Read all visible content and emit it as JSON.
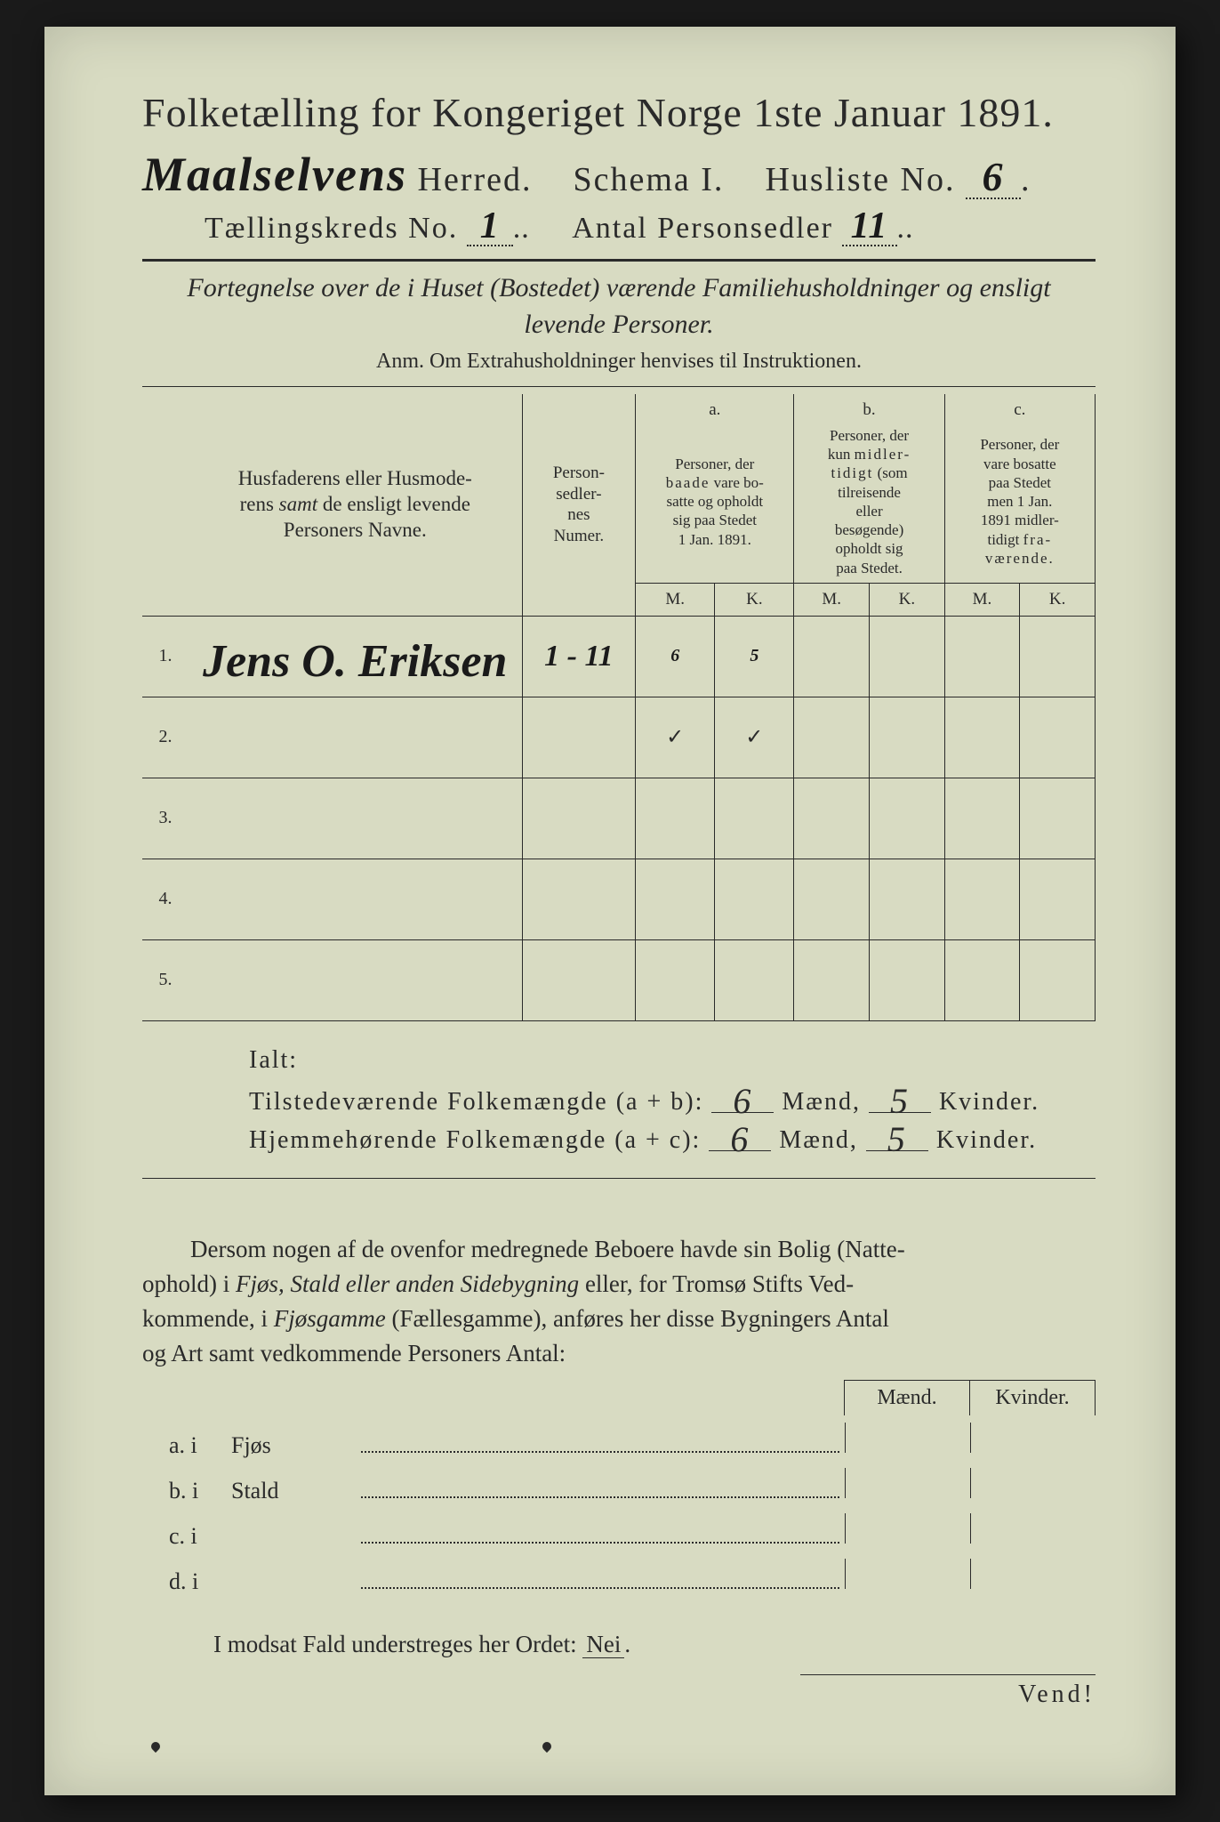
{
  "header": {
    "title": "Folketælling for Kongeriget Norge 1ste Januar 1891.",
    "herred_hand": "Maalselvens",
    "herred_label": "Herred.",
    "schema": "Schema I.",
    "husliste_label": "Husliste No.",
    "husliste_no": "6",
    "kreds_label": "Tællingskreds No.",
    "kreds_no": "1",
    "antal_label": "Antal Personsedler",
    "antal_no": "11"
  },
  "subtitle": {
    "line1": "Fortegnelse over de i Huset (Bostedet) værende Familiehusholdninger og ensligt",
    "line2": "levende Personer."
  },
  "anm": "Anm.  Om Extrahusholdninger henvises til Instruktionen.",
  "table": {
    "col_name": "Husfaderens eller Husmoderens samt de ensligt levende Personers Navne.",
    "col_sedler": "Person-sedler-nes Numer.",
    "col_a_head": "a.",
    "col_a": "Personer, der baade vare bosatte og opholdt sig paa Stedet 1 Jan. 1891.",
    "col_b_head": "b.",
    "col_b": "Personer, der kun midlertidigt (som tilreisende eller besøgende) opholdt sig paa Stedet.",
    "col_c_head": "c.",
    "col_c": "Personer, der vare bosatte paa Stedet men 1 Jan. 1891 midlertidigt fraværende.",
    "mk_m": "M.",
    "mk_k": "K.",
    "rows": [
      {
        "n": "1.",
        "name": "Jens O. Eriksen",
        "sedler": "1 - 11",
        "aM": "6",
        "aK": "5",
        "bM": "",
        "bK": "",
        "cM": "",
        "cK": ""
      },
      {
        "n": "2.",
        "name": "",
        "sedler": "",
        "aM": "✓",
        "aK": "✓",
        "bM": "",
        "bK": "",
        "cM": "",
        "cK": ""
      },
      {
        "n": "3.",
        "name": "",
        "sedler": "",
        "aM": "",
        "aK": "",
        "bM": "",
        "bK": "",
        "cM": "",
        "cK": ""
      },
      {
        "n": "4.",
        "name": "",
        "sedler": "",
        "aM": "",
        "aK": "",
        "bM": "",
        "bK": "",
        "cM": "",
        "cK": ""
      },
      {
        "n": "5.",
        "name": "",
        "sedler": "",
        "aM": "",
        "aK": "",
        "bM": "",
        "bK": "",
        "cM": "",
        "cK": ""
      }
    ]
  },
  "summary": {
    "ialt": "Ialt:",
    "line1_label": "Tilstedeværende Folkemængde (a + b):",
    "line2_label": "Hjemmehørende Folkemængde (a + c):",
    "maend": "Mænd,",
    "kvinder": "Kvinder.",
    "l1m": "6",
    "l1k": "5",
    "l2m": "6",
    "l2k": "5"
  },
  "para": "Dersom nogen af de ovenfor medregnede Beboere havde sin Bolig (Natteophold) i Fjøs, Stald eller anden Sidebygning eller, for Tromsø Stifts Vedkommende, i Fjøsgamme (Fællesgamme), anføres her disse Bygningers Antal og Art samt vedkommende Personers Antal:",
  "mk": {
    "m": "Mænd.",
    "k": "Kvinder."
  },
  "sub": {
    "a": "a.  i",
    "a_txt": "Fjøs",
    "b": "b.  i",
    "b_txt": "Stald",
    "c": "c.  i",
    "c_txt": "",
    "d": "d.  i",
    "d_txt": ""
  },
  "modsat": "I modsat Fald understreges her Ordet: Nei.",
  "vend": "Vend!"
}
